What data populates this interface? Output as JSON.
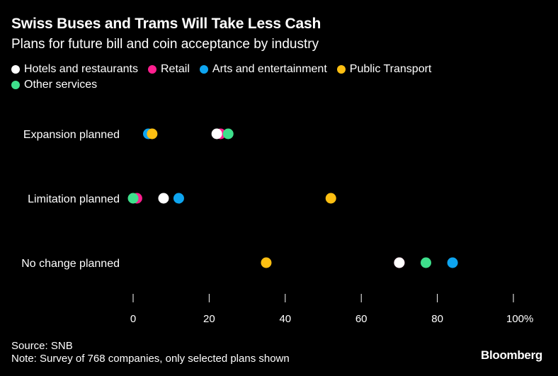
{
  "header": {
    "title": "Swiss Buses and Trams Will Take Less Cash",
    "subtitle": "Plans for future bill and coin acceptance by industry"
  },
  "legend": [
    {
      "label": "Hotels and restaurants",
      "color": "#ffffff"
    },
    {
      "label": "Retail",
      "color": "#ff1f8f"
    },
    {
      "label": "Arts and entertainment",
      "color": "#0ea5f0"
    },
    {
      "label": "Public Transport",
      "color": "#fdbf12"
    },
    {
      "label": "Other services",
      "color": "#3ee08c"
    }
  ],
  "chart_data": {
    "type": "scatter",
    "title": "Swiss Buses and Trams Will Take Less Cash",
    "subtitle": "Plans for future bill and coin acceptance by industry",
    "xlabel": "",
    "ylabel": "",
    "xlim": [
      0,
      100
    ],
    "x_ticks": [
      0,
      20,
      40,
      60,
      80,
      100
    ],
    "x_tick_labels": [
      "0",
      "20",
      "40",
      "60",
      "80",
      "100%"
    ],
    "categories": [
      "Expansion planned",
      "Limitation planned",
      "No change planned"
    ],
    "series": [
      {
        "name": "Hotels and restaurants",
        "color": "#ffffff",
        "values": [
          22,
          8,
          70
        ]
      },
      {
        "name": "Retail",
        "color": "#ff1f8f",
        "values": [
          23,
          1,
          70
        ]
      },
      {
        "name": "Arts and entertainment",
        "color": "#0ea5f0",
        "values": [
          4,
          12,
          84
        ]
      },
      {
        "name": "Public Transport",
        "color": "#fdbf12",
        "values": [
          5,
          52,
          35
        ]
      },
      {
        "name": "Other services",
        "color": "#3ee08c",
        "values": [
          25,
          0,
          77
        ]
      }
    ]
  },
  "footer": {
    "source": "Source: SNB",
    "note": "Note: Survey of 768 companies, only selected plans shown",
    "brand": "Bloomberg"
  }
}
